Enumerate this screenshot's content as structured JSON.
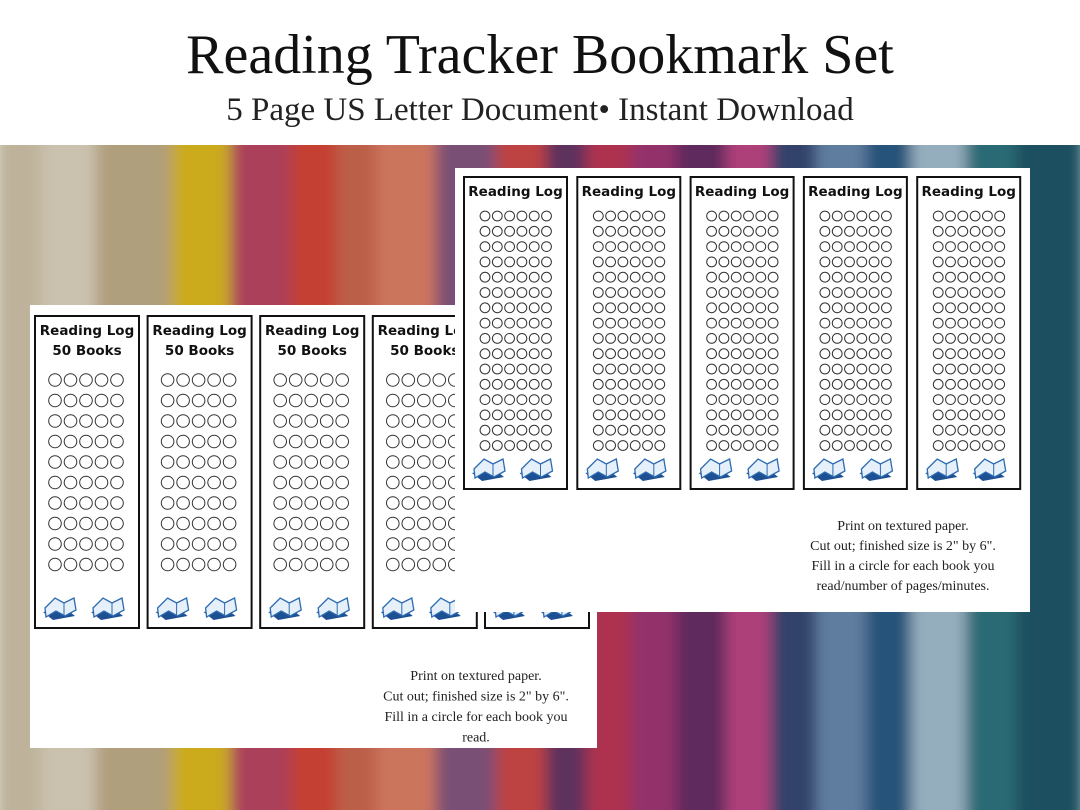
{
  "header": {
    "title": "Reading Tracker Bookmark Set",
    "subtitle": "5 Page US Letter Document• Instant Download"
  },
  "sheets": [
    {
      "bookmarks": [
        {
          "title": "Reading Log",
          "subtitle": "50 Books"
        },
        {
          "title": "Reading Log",
          "subtitle": "50 Books"
        },
        {
          "title": "Reading Log",
          "subtitle": "50 Books"
        },
        {
          "title": "Reading Log",
          "subtitle": "50 Books"
        }
      ],
      "note": [
        "Print on textured paper.",
        "Cut out; finished size is 2\" by 6\".",
        "Fill in a circle for each book you",
        "read."
      ]
    },
    {
      "bookmarks": [
        {
          "title": "Reading Log"
        },
        {
          "title": "Reading Log"
        },
        {
          "title": "Reading Log"
        },
        {
          "title": "Reading Log"
        },
        {
          "title": "Reading Log"
        }
      ],
      "note": [
        "Print on textured paper.",
        "Cut out; finished size is 2\" by 6\".",
        "Fill in a circle for each book you",
        "read/number of pages/minutes."
      ]
    }
  ]
}
